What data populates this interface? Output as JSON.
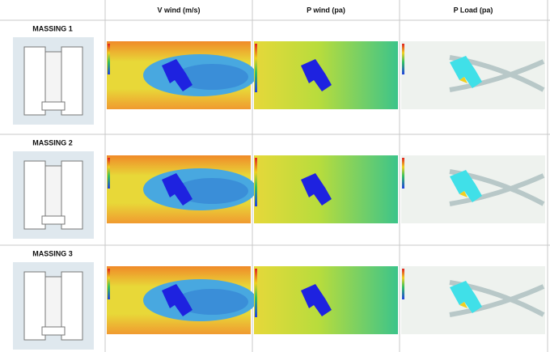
{
  "table": {
    "headers": [
      "V wind (m/s)",
      "P wind (pa)",
      "P Load (pa)"
    ],
    "rows": [
      {
        "label": "MASSING 1"
      },
      {
        "label": "MASSING 2"
      },
      {
        "label": "MASSING 3"
      }
    ]
  }
}
